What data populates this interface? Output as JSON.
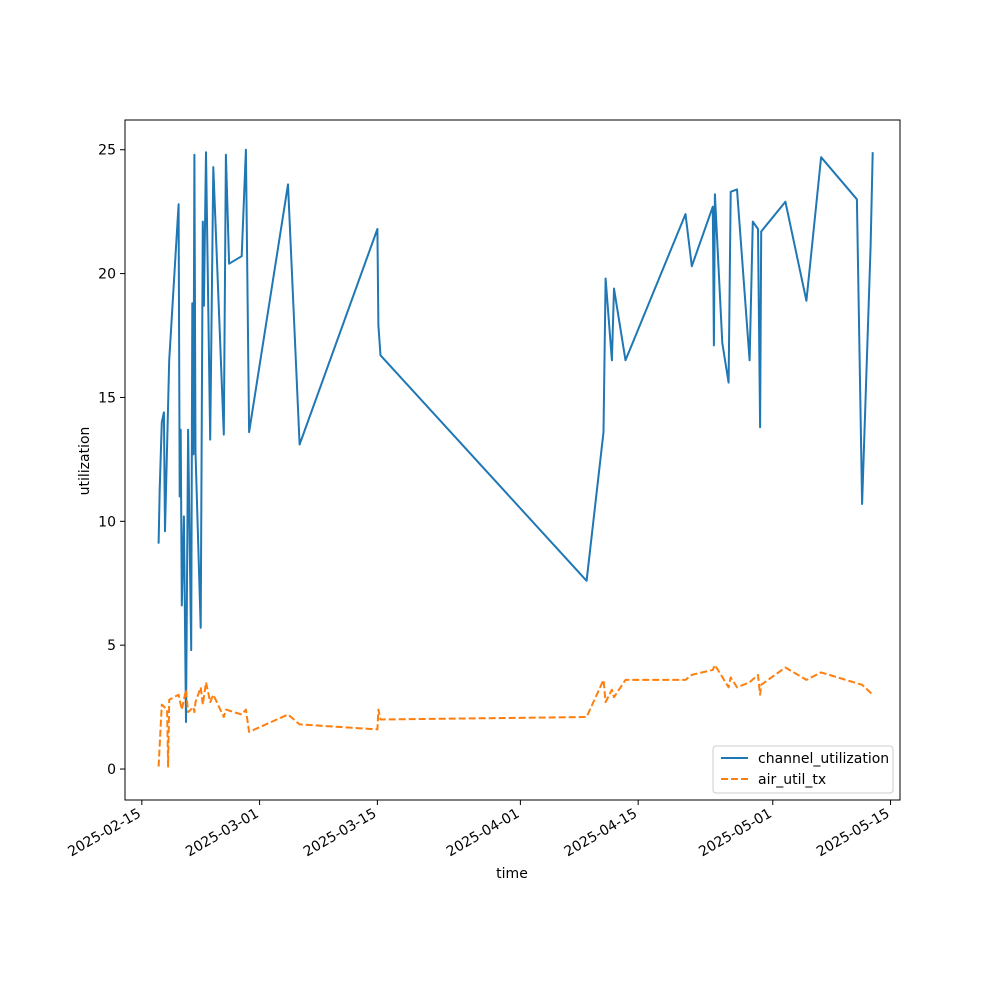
{
  "chart_data": {
    "type": "line",
    "xlabel": "time",
    "ylabel": "utilization",
    "xlim": [
      "2025-02-13T00:00",
      "2025-05-16T03:00"
    ],
    "ylim": [
      -1.25,
      26.2
    ],
    "x_ticks": [
      "2025-02-15",
      "2025-03-01",
      "2025-03-15",
      "2025-04-01",
      "2025-04-15",
      "2025-05-01",
      "2025-05-15"
    ],
    "y_ticks": [
      0,
      5,
      10,
      15,
      20,
      25
    ],
    "grid": false,
    "legend": "lower-right",
    "series": [
      {
        "name": "channel_utilization",
        "color": "#1f77b4",
        "dash": "solid",
        "points": [
          [
            "2025-02-17T00:00",
            9.1
          ],
          [
            "2025-02-17T03:00",
            11.3
          ],
          [
            "2025-02-17T09:00",
            14.0
          ],
          [
            "2025-02-17T15:00",
            14.4
          ],
          [
            "2025-02-17T18:00",
            9.6
          ],
          [
            "2025-02-18T06:00",
            16.5
          ],
          [
            "2025-02-19T09:00",
            22.8
          ],
          [
            "2025-02-19T12:00",
            11.0
          ],
          [
            "2025-02-19T15:00",
            13.7
          ],
          [
            "2025-02-19T18:00",
            6.6
          ],
          [
            "2025-02-20T00:00",
            10.2
          ],
          [
            "2025-02-20T06:00",
            1.9
          ],
          [
            "2025-02-20T12:00",
            13.7
          ],
          [
            "2025-02-20T21:00",
            4.8
          ],
          [
            "2025-02-21T00:00",
            18.8
          ],
          [
            "2025-02-21T03:00",
            12.7
          ],
          [
            "2025-02-21T06:00",
            24.8
          ],
          [
            "2025-02-21T09:00",
            12.8
          ],
          [
            "2025-02-22T00:00",
            5.7
          ],
          [
            "2025-02-22T06:00",
            22.1
          ],
          [
            "2025-02-22T09:00",
            18.7
          ],
          [
            "2025-02-22T15:00",
            24.9
          ],
          [
            "2025-02-23T03:00",
            13.3
          ],
          [
            "2025-02-23T12:00",
            24.3
          ],
          [
            "2025-02-24T18:00",
            13.5
          ],
          [
            "2025-02-25T00:00",
            24.8
          ],
          [
            "2025-02-25T09:00",
            20.4
          ],
          [
            "2025-02-26T21:00",
            20.7
          ],
          [
            "2025-02-27T09:00",
            25.0
          ],
          [
            "2025-02-27T18:00",
            13.6
          ],
          [
            "2025-03-04T09:00",
            23.6
          ],
          [
            "2025-03-05T18:00",
            13.1
          ],
          [
            "2025-03-15T00:00",
            21.8
          ],
          [
            "2025-03-15T03:00",
            17.9
          ],
          [
            "2025-03-15T09:00",
            16.7
          ],
          [
            "2025-04-08T21:00",
            7.6
          ],
          [
            "2025-04-10T21:00",
            13.6
          ],
          [
            "2025-04-11T03:00",
            19.8
          ],
          [
            "2025-04-11T21:00",
            16.5
          ],
          [
            "2025-04-12T03:00",
            19.4
          ],
          [
            "2025-04-13T12:00",
            16.5
          ],
          [
            "2025-04-20T15:00",
            22.4
          ],
          [
            "2025-04-21T09:00",
            20.3
          ],
          [
            "2025-04-23T21:00",
            22.7
          ],
          [
            "2025-04-24T00:00",
            17.1
          ],
          [
            "2025-04-24T03:00",
            23.2
          ],
          [
            "2025-04-25T00:00",
            17.2
          ],
          [
            "2025-04-25T18:00",
            15.6
          ],
          [
            "2025-04-26T00:00",
            23.3
          ],
          [
            "2025-04-26T18:00",
            23.4
          ],
          [
            "2025-04-28T06:00",
            16.5
          ],
          [
            "2025-04-28T15:00",
            22.1
          ],
          [
            "2025-04-29T06:00",
            21.8
          ],
          [
            "2025-04-29T12:00",
            13.8
          ],
          [
            "2025-04-29T15:00",
            21.7
          ],
          [
            "2025-05-02T12:00",
            22.9
          ],
          [
            "2025-05-05T00:00",
            18.9
          ],
          [
            "2025-05-06T18:00",
            24.7
          ],
          [
            "2025-05-11T00:00",
            23.0
          ],
          [
            "2025-05-11T15:00",
            10.7
          ],
          [
            "2025-05-12T15:00",
            21.1
          ],
          [
            "2025-05-12T21:00",
            24.9
          ]
        ]
      },
      {
        "name": "air_util_tx",
        "color": "#ff7f0e",
        "dash": "dashed",
        "points": [
          [
            "2025-02-17T00:00",
            0.1
          ],
          [
            "2025-02-17T09:00",
            2.6
          ],
          [
            "2025-02-18T00:00",
            2.4
          ],
          [
            "2025-02-18T03:00",
            0.1
          ],
          [
            "2025-02-18T06:00",
            2.8
          ],
          [
            "2025-02-19T09:00",
            3.0
          ],
          [
            "2025-02-19T18:00",
            2.4
          ],
          [
            "2025-02-20T06:00",
            3.2
          ],
          [
            "2025-02-20T12:00",
            2.3
          ],
          [
            "2025-02-21T03:00",
            2.5
          ],
          [
            "2025-02-21T06:00",
            2.3
          ],
          [
            "2025-02-21T09:00",
            2.7
          ],
          [
            "2025-02-22T00:00",
            3.3
          ],
          [
            "2025-02-22T06:00",
            2.6
          ],
          [
            "2025-02-22T15:00",
            3.5
          ],
          [
            "2025-02-23T03:00",
            2.7
          ],
          [
            "2025-02-23T12:00",
            3.0
          ],
          [
            "2025-02-24T18:00",
            2.1
          ],
          [
            "2025-02-25T00:00",
            2.4
          ],
          [
            "2025-02-26T21:00",
            2.2
          ],
          [
            "2025-02-27T09:00",
            2.4
          ],
          [
            "2025-02-27T18:00",
            1.5
          ],
          [
            "2025-03-04T09:00",
            2.2
          ],
          [
            "2025-03-05T18:00",
            1.8
          ],
          [
            "2025-03-15T00:00",
            1.6
          ],
          [
            "2025-03-15T03:00",
            2.4
          ],
          [
            "2025-03-15T09:00",
            2.0
          ],
          [
            "2025-04-08T21:00",
            2.1
          ],
          [
            "2025-04-10T21:00",
            3.6
          ],
          [
            "2025-04-11T03:00",
            2.7
          ],
          [
            "2025-04-11T21:00",
            3.2
          ],
          [
            "2025-04-12T03:00",
            2.9
          ],
          [
            "2025-04-13T12:00",
            3.6
          ],
          [
            "2025-04-20T15:00",
            3.6
          ],
          [
            "2025-04-21T09:00",
            3.8
          ],
          [
            "2025-04-23T21:00",
            4.0
          ],
          [
            "2025-04-24T03:00",
            4.2
          ],
          [
            "2025-04-25T18:00",
            3.3
          ],
          [
            "2025-04-26T00:00",
            3.7
          ],
          [
            "2025-04-26T18:00",
            3.3
          ],
          [
            "2025-04-28T06:00",
            3.5
          ],
          [
            "2025-04-29T06:00",
            3.8
          ],
          [
            "2025-04-29T12:00",
            3.0
          ],
          [
            "2025-04-29T15:00",
            3.4
          ],
          [
            "2025-05-02T12:00",
            4.1
          ],
          [
            "2025-05-05T00:00",
            3.6
          ],
          [
            "2025-05-06T18:00",
            3.9
          ],
          [
            "2025-05-11T15:00",
            3.4
          ],
          [
            "2025-05-12T21:00",
            3.0
          ]
        ]
      }
    ]
  }
}
